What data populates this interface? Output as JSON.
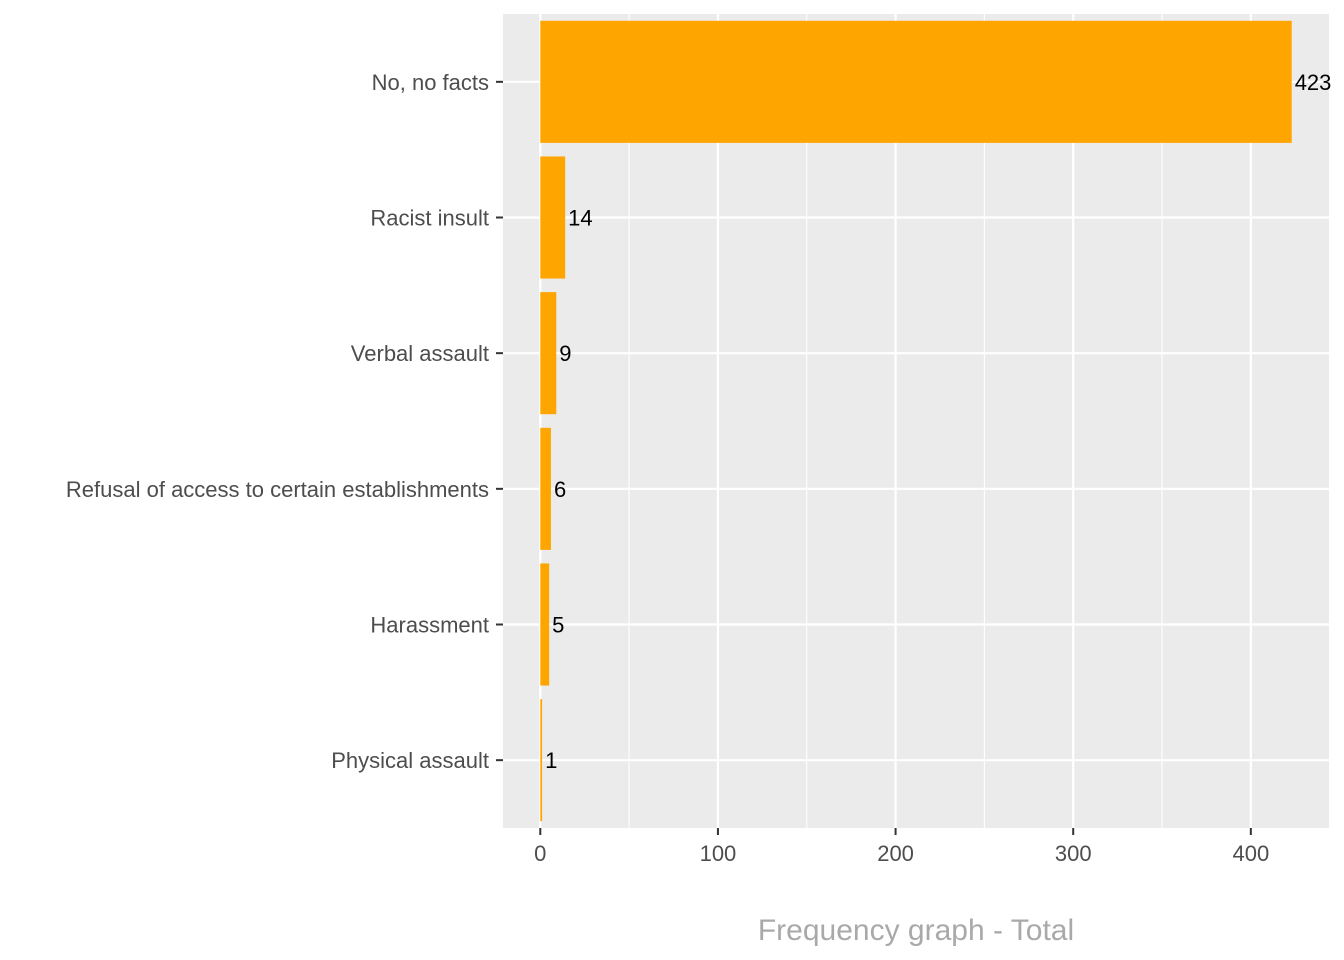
{
  "chart_data": {
    "type": "bar",
    "orientation": "horizontal",
    "categories": [
      "No, no facts",
      "Racist insult",
      "Verbal assault",
      "Refusal of access to certain establishments",
      "Harassment",
      "Physical assault"
    ],
    "values": [
      423,
      14,
      9,
      6,
      5,
      1
    ],
    "data_labels": [
      "423",
      "14",
      "9",
      "6",
      "5",
      "1"
    ],
    "title": "",
    "xlabel": "Frequency graph - Total",
    "ylabel": "",
    "xlim": [
      -21,
      444
    ],
    "x_ticks": [
      0,
      100,
      200,
      300,
      400
    ],
    "x_tick_labels": [
      "0",
      "100",
      "200",
      "300",
      "400"
    ],
    "x_minor_ticks": [
      50,
      150,
      250,
      350
    ],
    "grid": true,
    "legend": "none",
    "colors": {
      "bar": "#FFA500",
      "panel": "#EBEBEB",
      "grid": "#FFFFFF",
      "tick_text": "#4D4D4D",
      "data_label_text": "#000000",
      "axis_title": "#A9A9A9",
      "tick_mark": "#333333"
    }
  }
}
